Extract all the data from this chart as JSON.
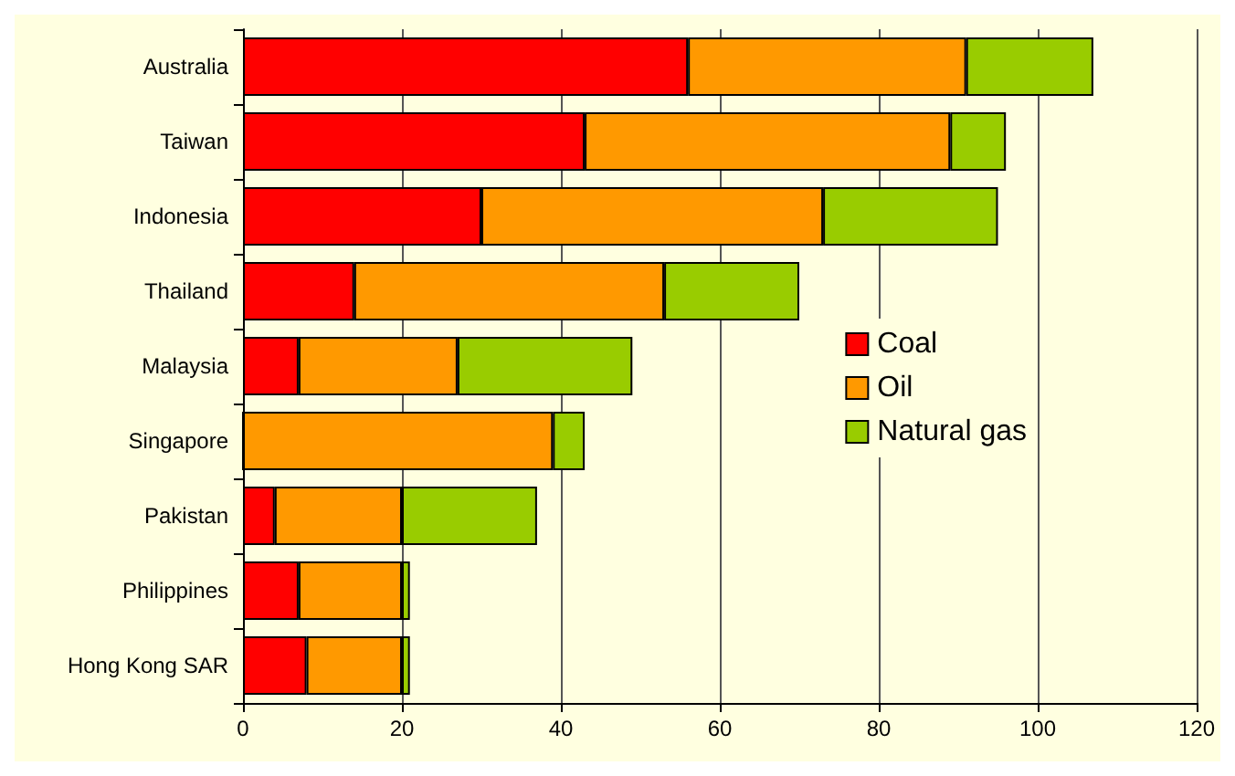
{
  "chart_data": {
    "type": "bar",
    "orientation": "horizontal",
    "stacked": true,
    "categories": [
      "Australia",
      "Taiwan",
      "Indonesia",
      "Thailand",
      "Malaysia",
      "Singapore",
      "Pakistan",
      "Philippines",
      "Hong Kong SAR"
    ],
    "series": [
      {
        "name": "Coal",
        "color": "#ff0000",
        "values": [
          56,
          43,
          30,
          14,
          7,
          0,
          4,
          7,
          8
        ]
      },
      {
        "name": "Oil",
        "color": "#ff9900",
        "values": [
          35,
          46,
          43,
          39,
          20,
          39,
          16,
          13,
          12
        ]
      },
      {
        "name": "Natural gas",
        "color": "#99cc00",
        "values": [
          16,
          7,
          22,
          17,
          22,
          4,
          17,
          1,
          1
        ]
      }
    ],
    "xlim": [
      0,
      120
    ],
    "xticks": [
      0,
      20,
      40,
      60,
      80,
      100,
      120
    ],
    "grid": "x",
    "legend": "right"
  }
}
